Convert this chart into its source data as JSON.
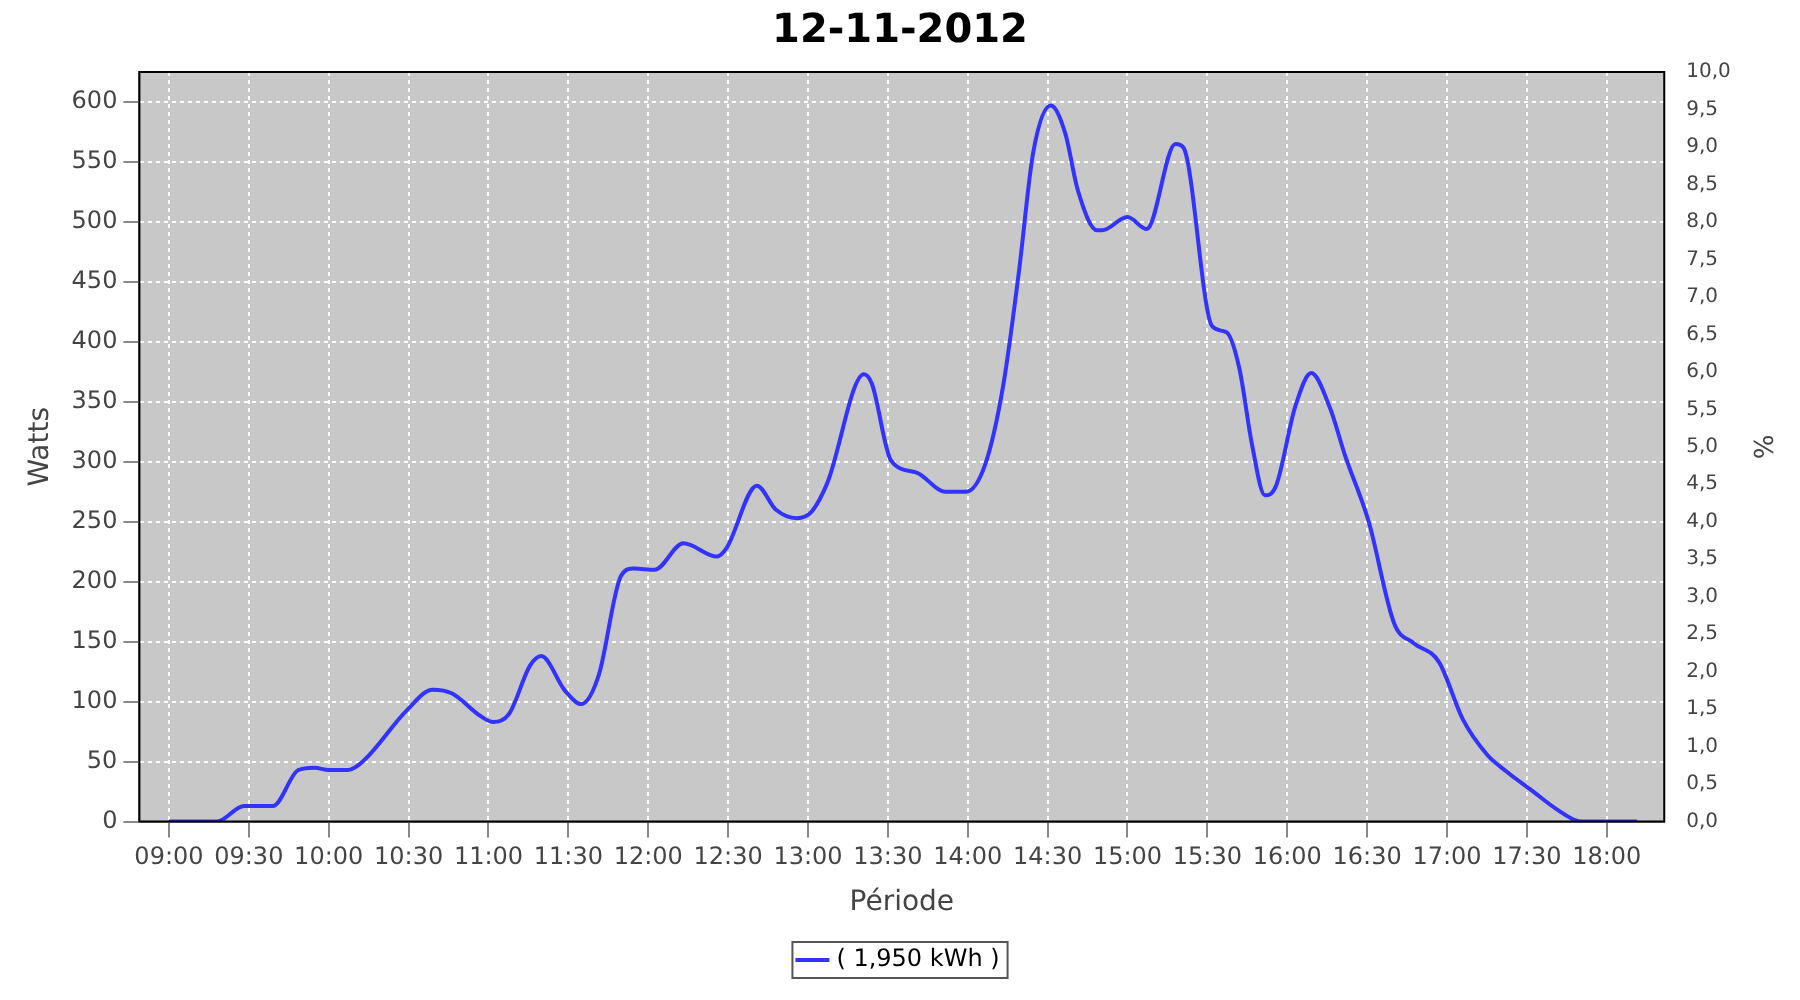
{
  "chart_data": {
    "type": "line",
    "title": "12-11-2012",
    "xlabel": "Période",
    "ylabel": "Watts",
    "y2label": "%",
    "xlim": [
      8.815,
      18.36
    ],
    "xticks": [
      {
        "value": 9,
        "label": "09:00"
      },
      {
        "value": 9.5,
        "label": "09:30"
      },
      {
        "value": 10,
        "label": "10:00"
      },
      {
        "value": 10.5,
        "label": "10:30"
      },
      {
        "value": 11,
        "label": "11:00"
      },
      {
        "value": 11.5,
        "label": "11:30"
      },
      {
        "value": 12,
        "label": "12:00"
      },
      {
        "value": 12.5,
        "label": "12:30"
      },
      {
        "value": 13,
        "label": "13:00"
      },
      {
        "value": 13.5,
        "label": "13:30"
      },
      {
        "value": 14,
        "label": "14:00"
      },
      {
        "value": 14.5,
        "label": "14:30"
      },
      {
        "value": 15,
        "label": "15:00"
      },
      {
        "value": 15.5,
        "label": "15:30"
      },
      {
        "value": 16,
        "label": "16:00"
      },
      {
        "value": 16.5,
        "label": "16:30"
      },
      {
        "value": 17,
        "label": "17:00"
      },
      {
        "value": 17.5,
        "label": "17:30"
      },
      {
        "value": 18,
        "label": "18:00"
      }
    ],
    "ylim": [
      0,
      625
    ],
    "yticks": [
      0,
      50,
      100,
      150,
      200,
      250,
      300,
      350,
      400,
      450,
      500,
      550,
      600
    ],
    "y2lim": [
      0,
      10
    ],
    "y2ticks": [
      {
        "value": 0,
        "label": "0,0"
      },
      {
        "value": 0.5,
        "label": "0,5"
      },
      {
        "value": 1,
        "label": "1,0"
      },
      {
        "value": 1.5,
        "label": "1,5"
      },
      {
        "value": 2,
        "label": "2,0"
      },
      {
        "value": 2.5,
        "label": "2,5"
      },
      {
        "value": 3,
        "label": "3,0"
      },
      {
        "value": 3.5,
        "label": "3,5"
      },
      {
        "value": 4,
        "label": "4,0"
      },
      {
        "value": 4.5,
        "label": "4,5"
      },
      {
        "value": 5,
        "label": "5,0"
      },
      {
        "value": 5.5,
        "label": "5,5"
      },
      {
        "value": 6,
        "label": "6,0"
      },
      {
        "value": 6.5,
        "label": "6,5"
      },
      {
        "value": 7,
        "label": "7,0"
      },
      {
        "value": 7.5,
        "label": "7,5"
      },
      {
        "value": 8,
        "label": "8,0"
      },
      {
        "value": 8.5,
        "label": "8,5"
      },
      {
        "value": 9,
        "label": "9,0"
      },
      {
        "value": 9.5,
        "label": "9,5"
      },
      {
        "value": 10,
        "label": "10,0"
      }
    ],
    "x": [
      9.0,
      9.3,
      9.47,
      9.65,
      9.81,
      9.91,
      10.0,
      10.12,
      10.22,
      10.49,
      10.65,
      10.77,
      10.95,
      11.03,
      11.13,
      11.26,
      11.33,
      11.48,
      11.58,
      11.69,
      11.83,
      11.91,
      12.04,
      12.22,
      12.43,
      12.49,
      12.68,
      12.8,
      12.93,
      13.02,
      13.12,
      13.35,
      13.4,
      13.52,
      13.68,
      13.86,
      13.99,
      14.11,
      14.22,
      14.32,
      14.41,
      14.52,
      14.61,
      14.69,
      14.81,
      14.84,
      15.0,
      15.12,
      15.3,
      15.35,
      15.53,
      15.62,
      15.7,
      15.78,
      15.86,
      15.93,
      16.05,
      16.15,
      16.27,
      16.36,
      16.51,
      16.67,
      16.79,
      16.95,
      17.1,
      17.25,
      17.37,
      17.53,
      17.69,
      17.84,
      18.19
    ],
    "series": [
      {
        "name": "( 1,950 kWh )",
        "color": "#3333ff",
        "values": [
          0,
          0,
          13,
          13,
          43,
          45,
          43,
          43,
          51,
          93,
          110,
          107,
          88,
          83,
          90,
          130,
          138,
          109,
          98,
          122,
          205,
          211,
          210,
          232,
          221,
          228,
          280,
          260,
          253,
          258,
          282,
          373,
          365,
          301,
          291,
          275,
          275,
          298,
          362,
          458,
          558,
          597,
          574,
          526,
          493,
          493,
          504,
          494,
          565,
          562,
          413,
          408,
          378,
          314,
          272,
          280,
          346,
          374,
          344,
          306,
          250,
          165,
          149,
          133,
          85,
          56,
          42,
          26,
          10,
          0,
          0
        ]
      }
    ],
    "grid": true,
    "legend": "bottom",
    "marker": "none",
    "line_style": "solid"
  }
}
